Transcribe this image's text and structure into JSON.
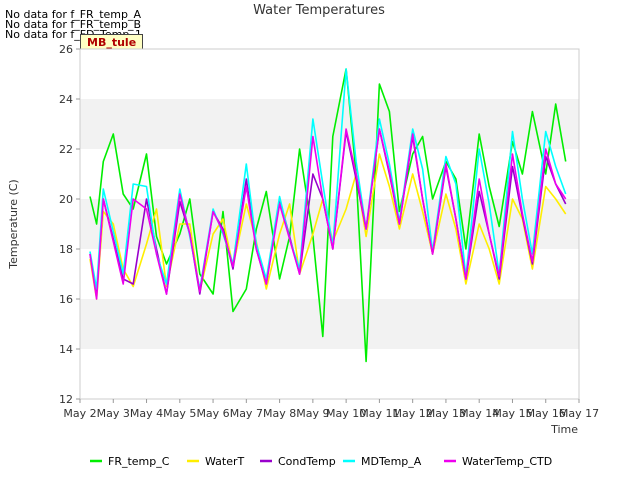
{
  "no_data_messages": [
    "No data for f_FR_temp_A",
    "No data for f_FR_temp_B",
    "No data for f_FD_Temp_1"
  ],
  "badge": "MB_tule",
  "chart_data": {
    "type": "line",
    "title": "Water Temperatures",
    "xlabel": "Time",
    "ylabel": "Temperature (C)",
    "ylim": [
      12,
      26
    ],
    "yticks": [
      12,
      14,
      16,
      18,
      20,
      22,
      24,
      26
    ],
    "xlim": [
      0,
      15
    ],
    "xtick_labels": [
      "May 2",
      "May 3",
      "May 4",
      "May 5",
      "May 6",
      "May 7",
      "May 8",
      "May 9",
      "May 10",
      "May 11",
      "May 12",
      "May 13",
      "May 14",
      "May 15",
      "May 16",
      "May 17"
    ],
    "grid": "horizontal bands",
    "legend": "bottom",
    "x": [
      0.3,
      0.5,
      0.7,
      1.0,
      1.3,
      1.6,
      2.0,
      2.3,
      2.6,
      3.0,
      3.3,
      3.6,
      4.0,
      4.3,
      4.6,
      5.0,
      5.3,
      5.6,
      6.0,
      6.3,
      6.6,
      7.0,
      7.3,
      7.6,
      8.0,
      8.3,
      8.6,
      9.0,
      9.3,
      9.6,
      10.0,
      10.3,
      10.6,
      11.0,
      11.3,
      11.6,
      12.0,
      12.3,
      12.6,
      13.0,
      13.3,
      13.6,
      14.0,
      14.3,
      14.6
    ],
    "series": [
      {
        "name": "FR_temp_C",
        "color": "#00ee00",
        "values": [
          20.1,
          19.0,
          21.5,
          22.6,
          20.2,
          19.6,
          21.8,
          18.5,
          17.4,
          18.6,
          20.0,
          17.0,
          16.2,
          19.5,
          15.5,
          16.4,
          18.8,
          20.3,
          16.8,
          18.5,
          22.0,
          18.5,
          14.5,
          22.5,
          25.2,
          21.0,
          13.5,
          24.6,
          23.5,
          19.5,
          21.8,
          22.5,
          20.0,
          21.5,
          20.8,
          18.0,
          22.6,
          20.5,
          18.9,
          22.3,
          21.0,
          23.5,
          21.0,
          23.8,
          21.5
        ]
      },
      {
        "name": "WaterT",
        "color": "#ffee00",
        "values": [
          17.6,
          16.0,
          19.5,
          19.0,
          17.2,
          16.5,
          18.2,
          19.6,
          16.5,
          19.0,
          19.0,
          16.3,
          18.6,
          19.2,
          17.3,
          19.8,
          18.3,
          16.4,
          18.6,
          19.8,
          17.0,
          18.6,
          20.0,
          18.3,
          19.6,
          21.0,
          18.5,
          21.8,
          20.5,
          18.8,
          21.0,
          19.5,
          17.8,
          20.2,
          18.8,
          16.6,
          19.0,
          18.0,
          16.6,
          20.0,
          19.2,
          17.2,
          20.5,
          20.0,
          19.4
        ]
      },
      {
        "name": "CondTemp",
        "color": "#9900cc",
        "values": [
          17.8,
          16.2,
          20.0,
          18.4,
          16.8,
          16.6,
          20.0,
          18.0,
          16.2,
          19.9,
          18.6,
          16.2,
          19.5,
          18.8,
          17.2,
          20.8,
          18.0,
          16.6,
          20.0,
          18.5,
          17.0,
          21.0,
          20.0,
          18.0,
          22.7,
          20.8,
          18.8,
          22.8,
          21.0,
          19.0,
          22.5,
          20.0,
          17.8,
          21.3,
          19.2,
          16.8,
          20.3,
          18.6,
          16.8,
          21.3,
          19.3,
          17.4,
          21.7,
          20.6,
          19.8
        ]
      },
      {
        "name": "MDTemp_A",
        "color": "#00ffff",
        "values": [
          17.9,
          16.4,
          20.4,
          18.7,
          17.0,
          20.6,
          20.5,
          17.8,
          16.6,
          20.4,
          18.5,
          16.4,
          19.6,
          18.6,
          17.4,
          21.4,
          18.2,
          16.8,
          20.1,
          18.4,
          17.2,
          23.2,
          20.6,
          18.1,
          25.2,
          21.5,
          18.8,
          23.2,
          21.4,
          19.1,
          22.8,
          21.2,
          17.9,
          21.7,
          20.6,
          16.9,
          22.0,
          19.8,
          17.0,
          22.7,
          20.0,
          17.8,
          22.7,
          21.3,
          20.2
        ]
      },
      {
        "name": "WaterTemp_CTD",
        "color": "#ee00ee",
        "values": [
          17.8,
          16.0,
          20.0,
          18.3,
          16.6,
          20.0,
          19.6,
          17.8,
          16.2,
          20.2,
          18.6,
          16.3,
          19.5,
          18.7,
          17.3,
          20.5,
          18.0,
          16.6,
          19.8,
          18.4,
          17.0,
          22.5,
          20.0,
          18.0,
          22.8,
          21.0,
          18.8,
          22.8,
          21.1,
          19.0,
          22.6,
          20.0,
          17.8,
          21.4,
          19.2,
          16.8,
          20.8,
          18.6,
          16.9,
          21.8,
          19.4,
          17.5,
          22.0,
          20.6,
          20.0
        ]
      }
    ]
  }
}
